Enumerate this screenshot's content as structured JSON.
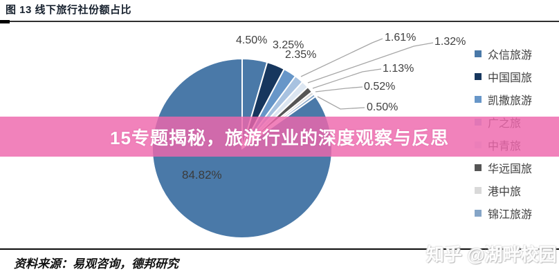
{
  "figure": {
    "title": "图 13 线下旅行社份额占比"
  },
  "banner": {
    "text": "15专题揭秘，旅游行业的深度观察与反思",
    "color": "#ee67ac"
  },
  "chart_data": {
    "type": "pie",
    "title": "图 13 线下旅行社份额占比",
    "legend_position": "right",
    "start_angle_deg": 0,
    "direction": "clockwise",
    "slices": [
      {
        "name": "众信旅游",
        "value": 4.5,
        "label": "4.50%",
        "color": "#4a79a8"
      },
      {
        "name": "中国国旅",
        "value": 3.25,
        "label": "3.25%",
        "color": "#17375e"
      },
      {
        "name": "凯撒旅游",
        "value": 2.35,
        "label": "2.35%",
        "color": "#6796c8"
      },
      {
        "name": "广之旅",
        "value": 1.61,
        "label": "1.61%",
        "color": "#a8c2e0"
      },
      {
        "name": "中青旅",
        "value": 1.32,
        "label": "1.32%",
        "color": "#dce6f1"
      },
      {
        "name": "华远国旅",
        "value": 1.13,
        "label": "1.13%",
        "color": "#555555"
      },
      {
        "name": "港中旅",
        "value": 0.52,
        "label": "0.52%",
        "color": "#d9d9d9"
      },
      {
        "name": "锦江旅游",
        "value": 0.5,
        "label": "0.50%",
        "color": "#85a5c7"
      },
      {
        "name": "",
        "value": 84.82,
        "label": "84.82%",
        "color": "#4a79a8"
      }
    ]
  },
  "source": {
    "text": "资料来源：易观咨询，德邦研究"
  },
  "watermark": {
    "text": "知乎 @湖畔校园"
  }
}
